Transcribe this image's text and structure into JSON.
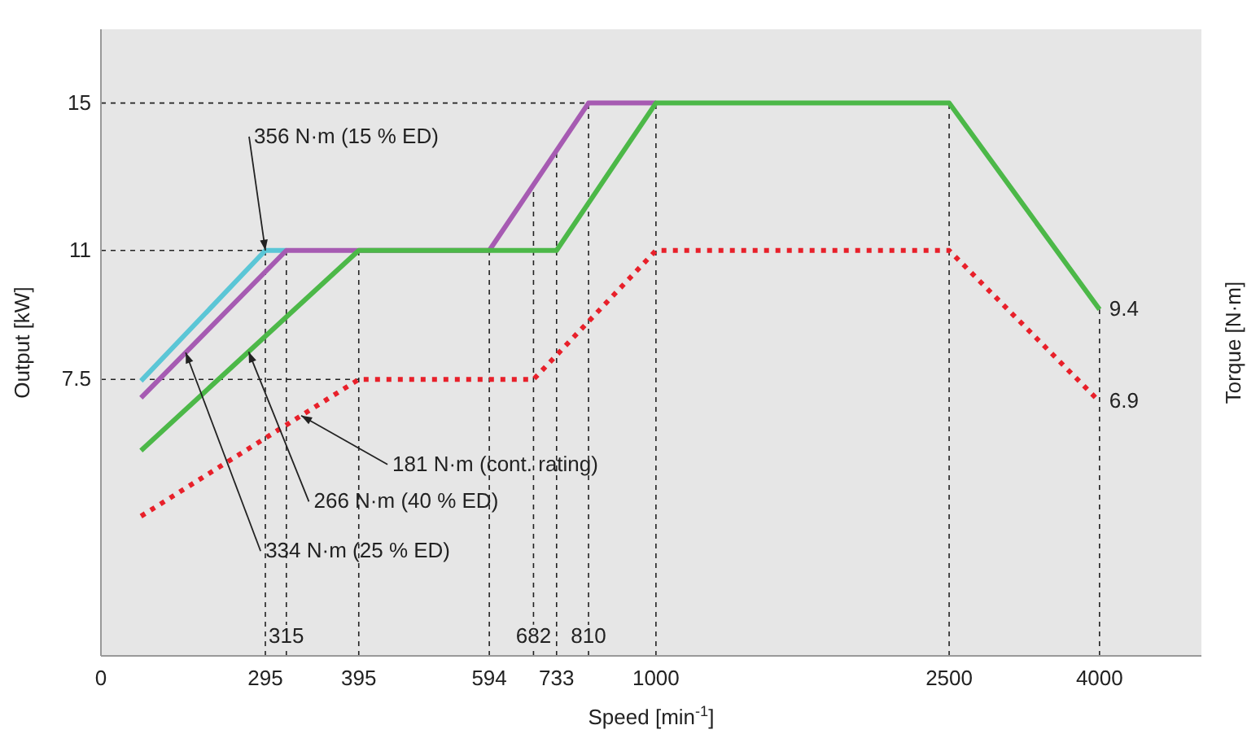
{
  "chart_data": {
    "type": "line",
    "xlabel": "Speed [min$^{-1}$]",
    "ylabel": "Output [kW]",
    "y2label": "Torque [N·m]",
    "log": "x",
    "xlim": [
      0,
      5500
    ],
    "ylim": [
      0,
      17
    ],
    "xticks": [
      0,
      295,
      395,
      594,
      733,
      1000,
      2500,
      4000
    ],
    "ref_lines": [
      {
        "axis": "x",
        "value": 315,
        "label": "315",
        "line_style": "dashed"
      },
      {
        "axis": "x",
        "value": 682,
        "label": "682",
        "line_style": "dashed"
      },
      {
        "axis": "x",
        "value": 810,
        "label": "810",
        "line_style": "dashed"
      },
      {
        "axis": "x",
        "value": 295,
        "line_style": "dashed"
      },
      {
        "axis": "x",
        "value": 395,
        "line_style": "dashed"
      },
      {
        "axis": "x",
        "value": 594,
        "line_style": "dashed"
      },
      {
        "axis": "x",
        "value": 733,
        "line_style": "dashed"
      },
      {
        "axis": "x",
        "value": 1000,
        "line_style": "dashed"
      },
      {
        "axis": "x",
        "value": 2500,
        "line_style": "dashed"
      },
      {
        "axis": "x",
        "value": 4000,
        "line_style": "dashed"
      },
      {
        "axis": "y",
        "value": 7.5,
        "line_style": "dashed"
      },
      {
        "axis": "y",
        "value": 11,
        "line_style": "dashed"
      },
      {
        "axis": "y",
        "value": 15,
        "line_style": "dashed"
      }
    ],
    "yticks": [
      7.5,
      11,
      15
    ],
    "series": [
      {
        "color": "#5bc6d6",
        "line_style": "solid",
        "x": [
          200,
          295,
          315
        ],
        "values": [
          7.46,
          11,
          11
        ]
      },
      {
        "color": "#a65bb2",
        "line_style": "solid",
        "x": [
          200,
          315,
          594,
          810,
          1000
        ],
        "values": [
          7.0,
          11,
          11,
          15,
          15
        ]
      },
      {
        "color": "#4cb848",
        "line_style": "solid",
        "x": [
          200,
          395,
          733,
          1000,
          2500,
          4000
        ],
        "values": [
          5.57,
          11,
          11,
          15,
          15,
          9.4
        ],
        "value_labels": [
          null,
          null,
          null,
          null,
          null,
          "9.4"
        ]
      },
      {
        "color": "#e8202a",
        "line_style": "dotted",
        "x": [
          200,
          395,
          682,
          1000,
          2500,
          4000
        ],
        "values": [
          3.79,
          7.5,
          7.5,
          11,
          11,
          6.9
        ],
        "value_labels": [
          null,
          null,
          null,
          null,
          null,
          "6.9"
        ]
      }
    ],
    "annotations": [
      {
        "text": "356 N·m (15 % ED)",
        "x": 295,
        "y": 11
      },
      {
        "text": "334 N·m (25 % ED)",
        "x": 230,
        "y": 8.23
      },
      {
        "text": "266 N·m (40 % ED)",
        "x": 280,
        "y": 8.25
      },
      {
        "text": "181 N·m (cont. rating)",
        "x": 330,
        "y": 6.52
      }
    ]
  }
}
